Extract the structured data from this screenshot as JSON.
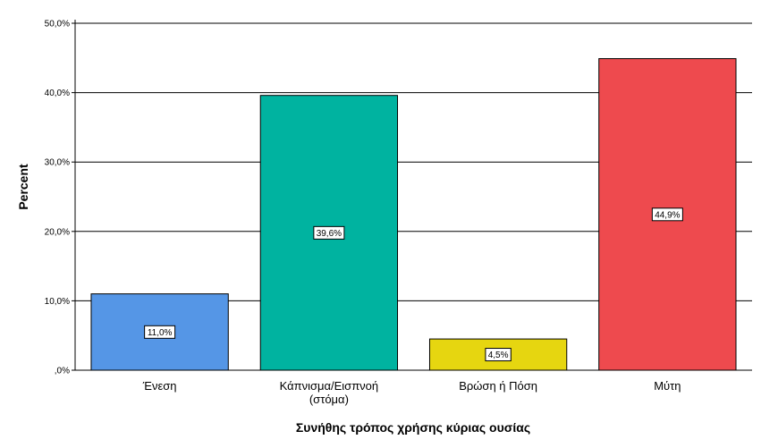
{
  "chart_data": {
    "type": "bar",
    "categories": [
      [
        "Ένεση"
      ],
      [
        "Κάπνισμα/Εισπνοή",
        "(στόμα)"
      ],
      [
        "Βρώση ή Πόση"
      ],
      [
        "Μύτη"
      ]
    ],
    "values": [
      11.0,
      39.6,
      4.5,
      44.9
    ],
    "data_labels": [
      "11,0%",
      "39,6%",
      "4,5%",
      "44,9%"
    ],
    "colors": [
      "#5596e6",
      "#00b3a0",
      "#e6d610",
      "#ee4a4e"
    ],
    "title": "",
    "xlabel": "Συνήθης τρόπος χρήσης κύριας ουσίας",
    "ylabel": "Percent",
    "ylim": [
      0,
      50
    ],
    "yticks": [
      0,
      10,
      20,
      30,
      40,
      50
    ],
    "ytick_labels": [
      ",0%",
      "10,0%",
      "20,0%",
      "30,0%",
      "40,0%",
      "50,0%"
    ],
    "grid": true,
    "legend": "none"
  }
}
